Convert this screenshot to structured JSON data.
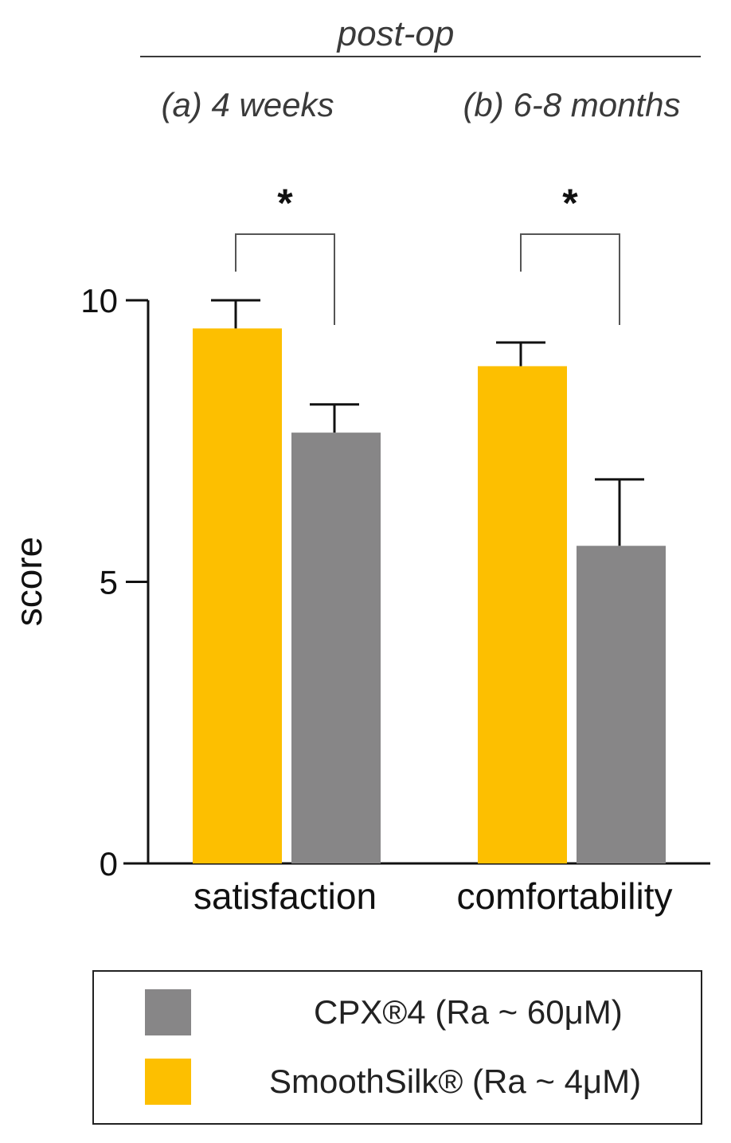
{
  "chart_data": {
    "type": "bar",
    "header": {
      "group_title": "post-op",
      "subtitles": [
        "(a) 4 weeks",
        "(b) 6-8 months"
      ]
    },
    "categories": [
      "satisfaction",
      "comfortability"
    ],
    "series": [
      {
        "name": "SmoothSilk® (Ra ~ 4μM)",
        "color": "#FDBF00",
        "values": [
          9.5,
          8.83
        ],
        "errors": [
          0.5,
          0.42
        ]
      },
      {
        "name": "CPX®4 (Ra ~ 60μM)",
        "color": "#878687",
        "values": [
          7.65,
          5.64
        ],
        "errors": [
          0.5,
          1.18
        ]
      }
    ],
    "ylabel": "score",
    "xlabel": "",
    "ylim": [
      0,
      10
    ],
    "yticks": [
      "0",
      "5",
      "10"
    ],
    "significance": [
      {
        "category": "satisfaction",
        "label": "*"
      },
      {
        "category": "comfortability",
        "label": "*"
      }
    ],
    "legend": {
      "position": "bottom",
      "items": [
        {
          "label": "CPX®4 (Ra ~ 60μM)",
          "color": "#878687"
        },
        {
          "label": "SmoothSilk® (Ra ~ 4μM)",
          "color": "#FDBF00"
        }
      ]
    }
  }
}
